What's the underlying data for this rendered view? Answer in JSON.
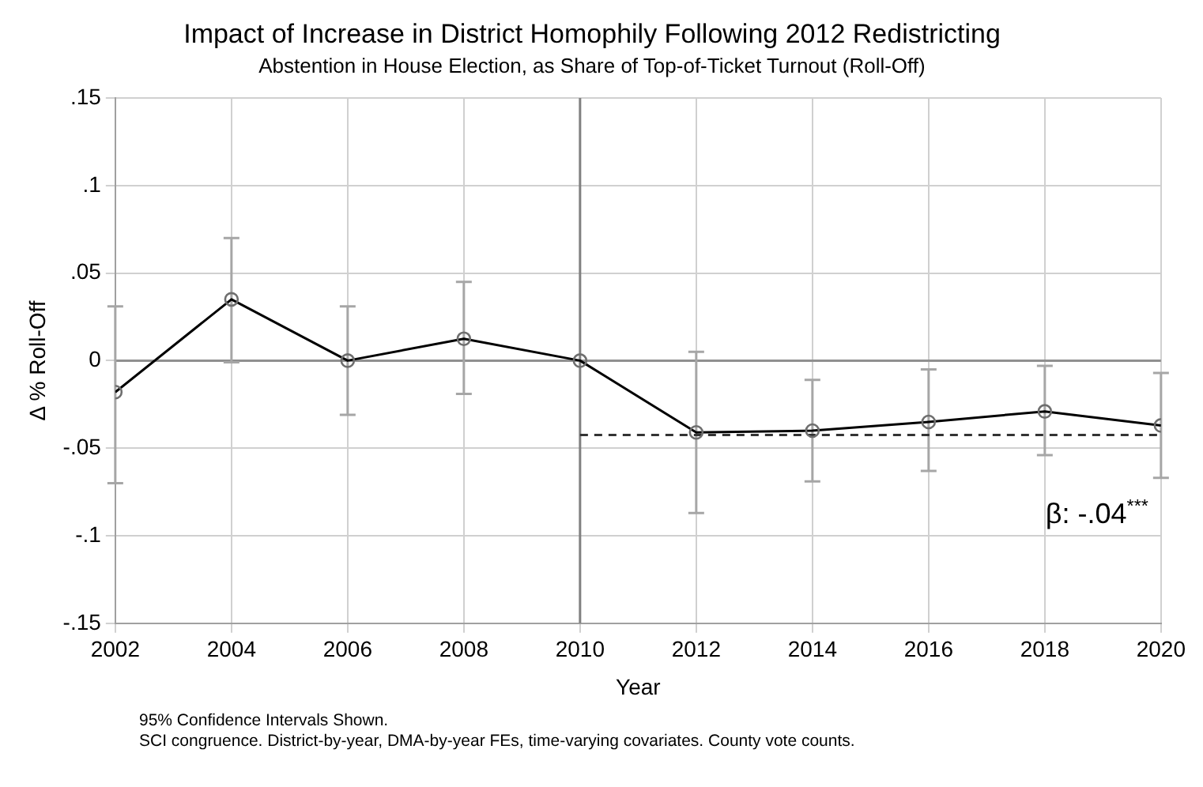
{
  "chart_data": {
    "type": "line",
    "title": "Impact of Increase in District Homophily Following 2012 Redistricting",
    "subtitle": "Abstention in House Election, as Share of Top-of-Ticket Turnout (Roll-Off)",
    "xlabel": "Year",
    "ylabel": "Δ % Roll-Off",
    "x": [
      2002,
      2004,
      2006,
      2008,
      2010,
      2012,
      2014,
      2016,
      2018,
      2020
    ],
    "series": [
      {
        "color": "#000000",
        "marker": "circle",
        "line_style": "solid",
        "values": [
          -0.018,
          0.035,
          0,
          0.0125,
          0,
          -0.041,
          -0.04,
          -0.035,
          -0.029,
          -0.037
        ],
        "errors": [
          [
            -0.07,
            0.031
          ],
          [
            -0.001,
            0.07
          ],
          [
            -0.031,
            0.031
          ],
          [
            -0.019,
            0.045
          ],
          null,
          [
            -0.087,
            0.005
          ],
          [
            -0.069,
            -0.011
          ],
          [
            -0.063,
            -0.005
          ],
          [
            -0.054,
            -0.003
          ],
          [
            -0.067,
            -0.007
          ]
        ]
      },
      {
        "type": "line",
        "color": "#333333",
        "marker": "none",
        "line_style": "dashed",
        "x": [
          2010,
          2020
        ],
        "values": [
          -0.0425,
          -0.0425
        ]
      }
    ],
    "xlim": [
      2002,
      2020
    ],
    "xticks": [
      2002,
      2004,
      2006,
      2008,
      2010,
      2012,
      2014,
      2016,
      2018,
      2020
    ],
    "ylim": [
      -0.15,
      0.15
    ],
    "yticks": [
      {
        "value": -0.15,
        "label": "-.15"
      },
      {
        "value": -0.1,
        "label": "-.1"
      },
      {
        "value": -0.05,
        "label": "-.05"
      },
      0,
      {
        "value": 0.05,
        "label": ".05"
      },
      {
        "value": 0.1,
        "label": ".1"
      },
      {
        "value": 0.15,
        "label": ".15"
      }
    ],
    "ref_lines": [
      {
        "axis": "x",
        "value": 2010,
        "color": "#808080"
      },
      {
        "axis": "y",
        "value": 0,
        "color": "#909090"
      }
    ],
    "grid": true,
    "legend": false,
    "annotations": [
      "β: -.04$^{***}$",
      "95% Confidence Intervals Shown.",
      "SCI congruence. District-by-year, DMA-by-year FEs, time-varying covariates. County vote counts."
    ]
  }
}
